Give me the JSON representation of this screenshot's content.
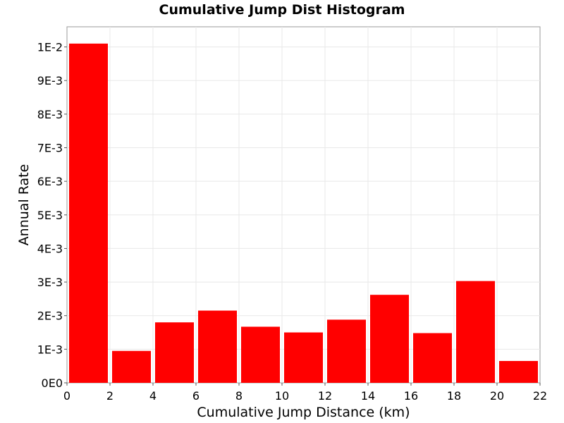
{
  "chart_data": {
    "type": "bar",
    "title": "Cumulative Jump Dist Histogram",
    "xlabel": "Cumulative Jump Distance (km)",
    "ylabel": "Annual Rate",
    "bin_width": 2,
    "x": [
      1,
      3,
      5,
      7,
      9,
      11,
      13,
      15,
      17,
      19,
      21
    ],
    "values": [
      0.0101,
      0.00095,
      0.0018,
      0.00215,
      0.00167,
      0.0015,
      0.00188,
      0.00262,
      0.00148,
      0.00303,
      0.00065
    ],
    "xlim": [
      0,
      22
    ],
    "ylim": [
      0,
      0.0106
    ],
    "x_ticks": [
      0,
      2,
      4,
      6,
      8,
      10,
      12,
      14,
      16,
      18,
      20,
      22
    ],
    "x_tick_labels": [
      "0",
      "2",
      "4",
      "6",
      "8",
      "10",
      "12",
      "14",
      "16",
      "18",
      "20",
      "22"
    ],
    "y_ticks": [
      0,
      0.001,
      0.002,
      0.003,
      0.004,
      0.005,
      0.006,
      0.007,
      0.008,
      0.009,
      0.01
    ],
    "y_tick_labels": [
      "0E0",
      "1E-3",
      "2E-3",
      "3E-3",
      "4E-3",
      "5E-3",
      "6E-3",
      "7E-3",
      "8E-3",
      "9E-3",
      "1E-2"
    ],
    "grid": true,
    "bar_color": "#ff0000"
  }
}
